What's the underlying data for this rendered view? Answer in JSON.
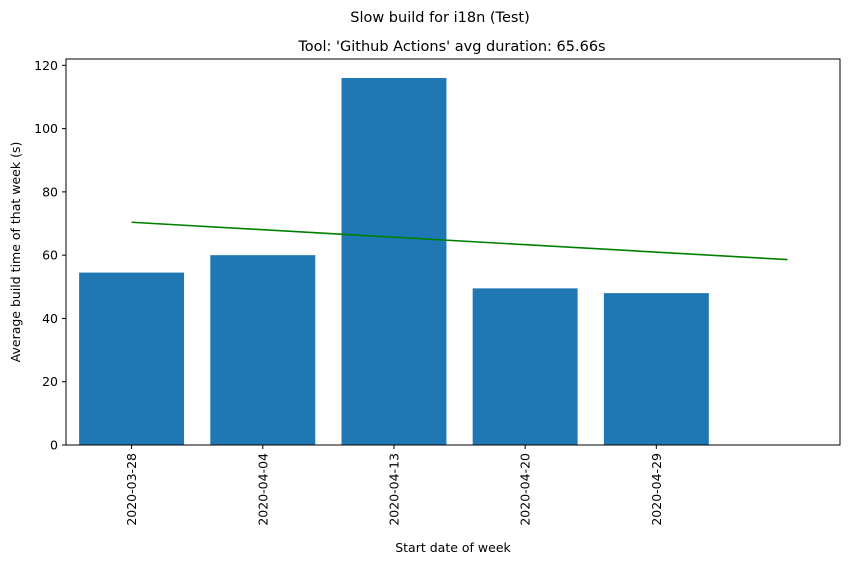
{
  "chart_data": {
    "type": "bar",
    "suptitle": "Slow build for i18n (Test)",
    "title": "Tool: 'Github Actions' avg duration: 65.66s",
    "xlabel": "Start date of week",
    "ylabel": "Average build time of that week (s)",
    "categories": [
      "2020-03-28",
      "2020-04-04",
      "2020-04-13",
      "2020-04-20",
      "2020-04-29"
    ],
    "values": [
      54.5,
      60.0,
      116.0,
      49.5,
      48.0
    ],
    "ylim": [
      0,
      122
    ],
    "yticks": [
      0,
      20,
      40,
      60,
      80,
      100,
      120
    ],
    "grid": false,
    "bar_color": "#1f77b4",
    "trendline": {
      "color": "#008000",
      "x": [
        0,
        5
      ],
      "y": [
        70.4,
        58.6
      ]
    }
  }
}
